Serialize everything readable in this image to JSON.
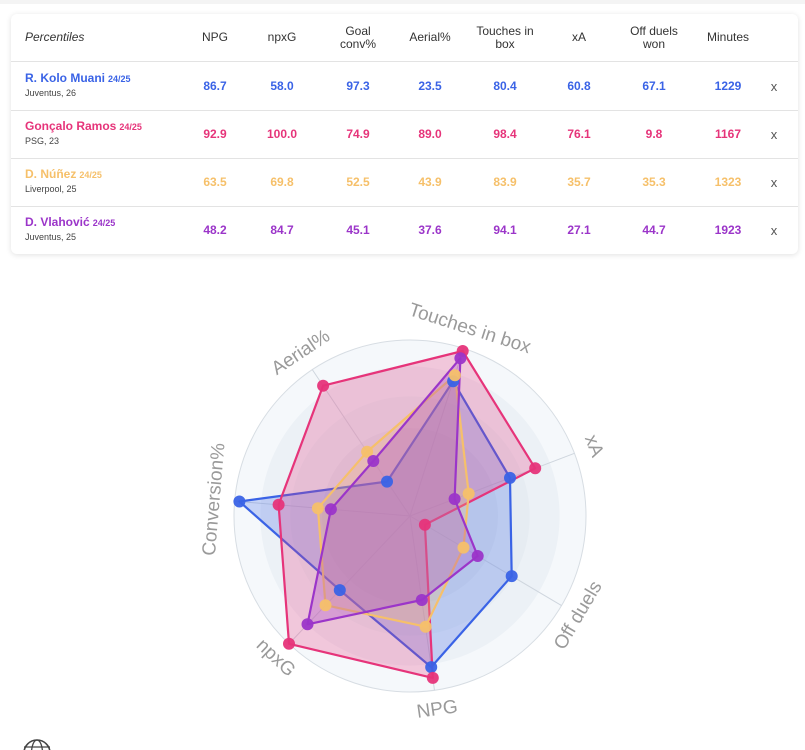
{
  "table": {
    "header": {
      "label": "Percentiles",
      "columns": [
        "NPG",
        "npxG",
        "Goal conv%",
        "Aerial%",
        "Touches in box",
        "xA",
        "Off duels won",
        "Minutes"
      ]
    },
    "remove_label": "x",
    "rows": [
      {
        "name": "R. Kolo Muani",
        "season": "24/25",
        "sub": "Juventus, 26",
        "color": "#3a63e6",
        "values": [
          "86.7",
          "58.0",
          "97.3",
          "23.5",
          "80.4",
          "60.8",
          "67.1",
          "1229"
        ]
      },
      {
        "name": "Gonçalo Ramos",
        "season": "24/25",
        "sub": "PSG, 23",
        "color": "#e6347a",
        "values": [
          "92.9",
          "100.0",
          "74.9",
          "89.0",
          "98.4",
          "76.1",
          "9.8",
          "1167"
        ]
      },
      {
        "name": "D. Núñez",
        "season": "24/25",
        "sub": "Liverpool, 25",
        "color": "#f6c06a",
        "values": [
          "63.5",
          "69.8",
          "52.5",
          "43.9",
          "83.9",
          "35.7",
          "35.3",
          "1323"
        ]
      },
      {
        "name": "D. Vlahović",
        "season": "24/25",
        "sub": "Juventus, 25",
        "color": "#9b35c9",
        "values": [
          "48.2",
          "84.7",
          "45.1",
          "37.6",
          "94.1",
          "27.1",
          "44.7",
          "1923"
        ]
      }
    ]
  },
  "chart_data": {
    "type": "radar",
    "axes": [
      "NPG",
      "npxG",
      "Conversion%",
      "Aerial%",
      "Touches in box",
      "xA",
      "Off duels"
    ],
    "range": [
      0,
      100
    ],
    "series": [
      {
        "name": "R. Kolo Muani",
        "color": "#3a63e6",
        "values": [
          86.7,
          58.0,
          97.3,
          23.5,
          80.4,
          60.8,
          67.1
        ]
      },
      {
        "name": "Gonçalo Ramos",
        "color": "#e6347a",
        "values": [
          92.9,
          100.0,
          74.9,
          89.0,
          98.4,
          76.1,
          9.8
        ]
      },
      {
        "name": "D. Núñez",
        "color": "#f6c06a",
        "values": [
          63.5,
          69.8,
          52.5,
          43.9,
          83.9,
          35.7,
          35.3
        ]
      },
      {
        "name": "D. Vlahović",
        "color": "#9b35c9",
        "values": [
          48.2,
          84.7,
          45.1,
          37.6,
          94.1,
          27.1,
          44.7
        ]
      }
    ]
  }
}
